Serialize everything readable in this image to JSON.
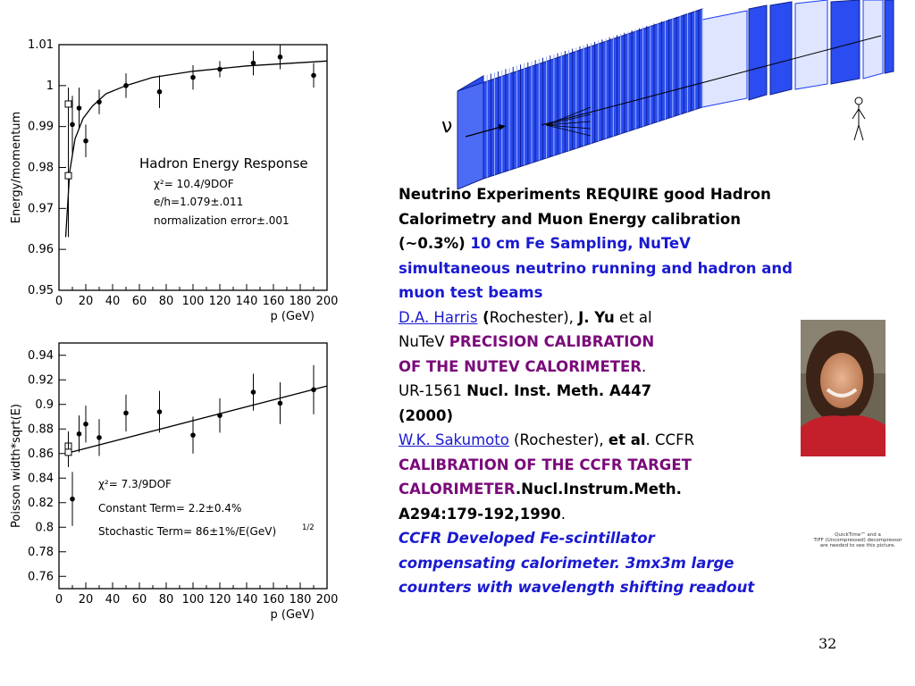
{
  "chart_data": [
    {
      "type": "scatter",
      "title": "",
      "xlabel": "p (GeV)",
      "ylabel": "Energy/momentum",
      "xlim": [
        0,
        200
      ],
      "ylim": [
        0.95,
        1.01
      ],
      "x_ticks": [
        "0",
        "20",
        "40",
        "60",
        "80",
        "100",
        "120",
        "140",
        "160",
        "180",
        "200"
      ],
      "y_ticks": [
        "0.95",
        "0.96",
        "0.97",
        "0.98",
        "0.99",
        "1",
        "1.01"
      ],
      "annotations": [
        "Hadron Energy Response",
        "χ²= 10.4/9DOF",
        "e/h=1.079±.011",
        "normalization error±.001"
      ],
      "series": [
        {
          "marker": "filled-circle",
          "x": [
            10,
            15,
            20,
            30,
            50,
            75,
            100,
            120,
            145,
            165,
            190
          ],
          "y": [
            0.9905,
            0.9945,
            0.9865,
            0.996,
            1.0,
            0.9985,
            1.002,
            1.004,
            1.0055,
            1.007,
            1.0025
          ],
          "yerr": [
            0.007,
            0.005,
            0.004,
            0.003,
            0.003,
            0.004,
            0.003,
            0.002,
            0.003,
            0.003,
            0.003
          ]
        },
        {
          "marker": "open-square",
          "x": [
            7,
            7
          ],
          "y": [
            0.9955,
            0.978
          ],
          "yerr": [
            0.004,
            0.015
          ]
        }
      ],
      "fit": {
        "x": [
          5,
          8,
          12,
          18,
          25,
          35,
          50,
          70,
          100,
          140,
          200
        ],
        "y": [
          0.963,
          0.979,
          0.987,
          0.992,
          0.995,
          0.998,
          1.0,
          1.002,
          1.0035,
          1.0048,
          1.006
        ]
      }
    },
    {
      "type": "scatter",
      "title": "",
      "xlabel": "p (GeV)",
      "ylabel": "Poisson width*sqrt(E)",
      "xlim": [
        0,
        200
      ],
      "ylim": [
        0.75,
        0.95
      ],
      "x_ticks": [
        "0",
        "20",
        "40",
        "60",
        "80",
        "100",
        "120",
        "140",
        "160",
        "180",
        "200"
      ],
      "y_ticks": [
        "0.76",
        "0.78",
        "0.8",
        "0.82",
        "0.84",
        "0.86",
        "0.88",
        "0.9",
        "0.92",
        "0.94"
      ],
      "annotations": [
        "χ²= 7.3/9DOF",
        "Constant Term= 2.2±0.4%",
        "Stochastic Term= 86±1%/E(GeV)"
      ],
      "annotation_superscript": "1/2",
      "series": [
        {
          "marker": "filled-circle",
          "x": [
            10,
            15,
            20,
            30,
            50,
            75,
            100,
            120,
            145,
            165,
            190
          ],
          "y": [
            0.823,
            0.876,
            0.884,
            0.873,
            0.893,
            0.894,
            0.875,
            0.891,
            0.91,
            0.901,
            0.912
          ],
          "yerr": [
            0.022,
            0.015,
            0.015,
            0.015,
            0.015,
            0.017,
            0.015,
            0.014,
            0.015,
            0.017,
            0.02
          ]
        },
        {
          "marker": "open-square",
          "x": [
            7,
            7
          ],
          "y": [
            0.866,
            0.861
          ],
          "yerr": [
            0.012,
            0.012
          ]
        }
      ],
      "fit": {
        "x": [
          5,
          200
        ],
        "y": [
          0.86,
          0.915
        ]
      }
    }
  ],
  "detector": {
    "nu_label": "ν"
  },
  "text_lines": [
    [
      {
        "t": "Neutrino Experiments REQUIRE good Hadron",
        "c": "b"
      }
    ],
    [
      {
        "t": "Calorimetry and Muon Energy calibration",
        "c": "b"
      }
    ],
    [
      {
        "t": "(~0.3%)",
        "c": "b"
      },
      {
        "t": "  10 cm Fe Sampling, NuTeV",
        "c": "b blu"
      }
    ],
    [
      {
        "t": "simultaneous neutrino running and hadron and",
        "c": "b blu"
      }
    ],
    [
      {
        "t": "muon test beams",
        "c": "b blu"
      }
    ],
    [
      {
        "t": "D.A. Harris",
        "c": "lnk"
      },
      {
        "t": " (",
        "c": "b"
      },
      {
        "t": "Rochester), ",
        "c": ""
      },
      {
        "t": "J. Yu",
        "c": "b"
      },
      {
        "t": " et al",
        "c": ""
      }
    ],
    [
      {
        "t": "NuTeV ",
        "c": ""
      },
      {
        "t": "PRECISION CALIBRATION",
        "c": "mag"
      }
    ],
    [
      {
        "t": " OF THE NUTEV CALORIMETER",
        "c": "mag"
      },
      {
        "t": ".",
        "c": ""
      }
    ],
    [
      {
        "t": "UR-1561   ",
        "c": ""
      },
      {
        "t": "Nucl. Inst. Meth. A447",
        "c": "b"
      }
    ],
    [
      {
        "t": " (2000)",
        "c": "b"
      }
    ],
    [
      {
        "t": "W.K. Sakumoto",
        "c": "lnk"
      },
      {
        "t": " (Rochester), ",
        "c": ""
      },
      {
        "t": "et al",
        "c": "b"
      },
      {
        "t": ". CCFR",
        "c": ""
      }
    ],
    [
      {
        "t": " CALIBRATION OF THE CCFR TARGET",
        "c": "mag"
      }
    ],
    [
      {
        "t": " CALORIMETER",
        "c": "mag"
      },
      {
        "t": ".Nucl.Instrum.Meth.",
        "c": "b"
      }
    ],
    [
      {
        "t": "A294:179-192,1990",
        "c": "b"
      },
      {
        "t": ".",
        "c": ""
      }
    ],
    [
      {
        "t": "CCFR Developed Fe-scintillator",
        "c": "blui"
      }
    ],
    [
      {
        "t": "compensating calorimeter.  3mx3m large",
        "c": "blui"
      }
    ],
    [
      {
        "t": "counters with wavelength shifting readout",
        "c": "blui"
      }
    ]
  ],
  "quicktime_notice": [
    "QuickTime™ and a",
    "TIFF (Uncompressed) decompressor",
    "are needed to see this picture."
  ],
  "page_number": "32",
  "colors": {
    "detector_blue": "#1a3cf0",
    "link_blue": "#1a1ad0",
    "title_magenta": "#7a0a7a"
  }
}
